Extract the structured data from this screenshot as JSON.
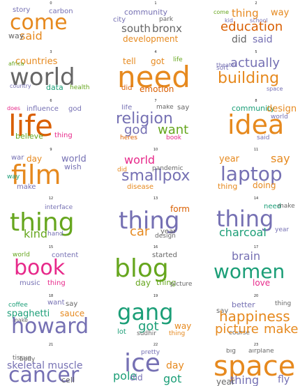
{
  "colors": {
    "orange": "#e6891e",
    "purple": "#7570b3",
    "green": "#66a61e",
    "teal": "#1b9e77",
    "pink": "#e7298a",
    "gold": "#b8860b",
    "grey": "#666666",
    "dark_orange": "#d95f02"
  },
  "panels": [
    {
      "index": "0",
      "words": [
        [
          "come",
          "#e6891e"
        ],
        [
          "said",
          "#e6891e"
        ],
        [
          "story",
          "#7570b3"
        ],
        [
          "carbon",
          "#7570b3"
        ],
        [
          "way",
          "#666666"
        ]
      ]
    },
    {
      "index": "1",
      "words": [
        [
          "community",
          "#7570b3"
        ],
        [
          "city",
          "#7570b3"
        ],
        [
          "park",
          "#666666"
        ],
        [
          "south",
          "#666666"
        ],
        [
          "bronx",
          "#666666"
        ],
        [
          "development",
          "#e6891e"
        ]
      ]
    },
    {
      "index": "2",
      "words": [
        [
          "thing",
          "#e6891e"
        ],
        [
          "way",
          "#e6891e"
        ],
        [
          "kid",
          "#7570b3"
        ],
        [
          "school",
          "#7570b3"
        ],
        [
          "education",
          "#d95f02"
        ],
        [
          "did",
          "#666666"
        ],
        [
          "said",
          "#7570b3"
        ],
        [
          "come",
          "#66a61e"
        ]
      ]
    },
    {
      "index": "3",
      "words": [
        [
          "countries",
          "#e6891e"
        ],
        [
          "world",
          "#666666"
        ],
        [
          "africa",
          "#66a61e"
        ],
        [
          "country",
          "#7570b3"
        ],
        [
          "data",
          "#1b9e77"
        ],
        [
          "health",
          "#66a61e"
        ]
      ]
    },
    {
      "index": "4",
      "words": [
        [
          "tell",
          "#e6891e"
        ],
        [
          "got",
          "#e6891e"
        ],
        [
          "life",
          "#66a61e"
        ],
        [
          "need",
          "#e6891e"
        ],
        [
          "did",
          "#d95f02"
        ],
        [
          "emotion",
          "#d95f02"
        ]
      ]
    },
    {
      "index": "5",
      "words": [
        [
          "actually",
          "#7570b3"
        ],
        [
          "building",
          "#e6891e"
        ],
        [
          "theater",
          "#7570b3"
        ],
        [
          "sort",
          "#7570b3"
        ],
        [
          "space",
          "#7570b3"
        ]
      ]
    },
    {
      "index": "6",
      "words": [
        [
          "life",
          "#d95f02"
        ],
        [
          "influence",
          "#7570b3"
        ],
        [
          "god",
          "#7570b3"
        ],
        [
          "believe",
          "#66a61e"
        ],
        [
          "thing",
          "#e7298a"
        ],
        [
          "does",
          "#e7298a"
        ]
      ]
    },
    {
      "index": "7",
      "words": [
        [
          "life",
          "#7570b3"
        ],
        [
          "make",
          "#666666"
        ],
        [
          "say",
          "#666666"
        ],
        [
          "religion",
          "#7570b3"
        ],
        [
          "god",
          "#7570b3"
        ],
        [
          "want",
          "#66a61e"
        ],
        [
          "heres",
          "#d95f02"
        ],
        [
          "book",
          "#e7298a"
        ]
      ]
    },
    {
      "index": "8",
      "words": [
        [
          "community",
          "#1b9e77"
        ],
        [
          "design",
          "#e6891e"
        ],
        [
          "idea",
          "#e6891e"
        ],
        [
          "world",
          "#7570b3"
        ],
        [
          "said",
          "#7570b3"
        ]
      ]
    },
    {
      "index": "9",
      "words": [
        [
          "war",
          "#7570b3"
        ],
        [
          "day",
          "#e6891e"
        ],
        [
          "world",
          "#7570b3"
        ],
        [
          "wish",
          "#7570b3"
        ],
        [
          "film",
          "#e6891e"
        ],
        [
          "make",
          "#7570b3"
        ],
        [
          "way",
          "#1b9e77"
        ]
      ]
    },
    {
      "index": "10",
      "words": [
        [
          "world",
          "#e7298a"
        ],
        [
          "did",
          "#e6891e"
        ],
        [
          "pandemic",
          "#666666"
        ],
        [
          "smallpox",
          "#7570b3"
        ],
        [
          "disease",
          "#e6891e"
        ]
      ]
    },
    {
      "index": "11",
      "words": [
        [
          "year",
          "#e6891e"
        ],
        [
          "say",
          "#e6891e"
        ],
        [
          "laptop",
          "#7570b3"
        ],
        [
          "thing",
          "#e6891e"
        ],
        [
          "doing",
          "#e6891e"
        ]
      ]
    },
    {
      "index": "12",
      "words": [
        [
          "thing",
          "#66a61e"
        ],
        [
          "interface",
          "#7570b3"
        ],
        [
          "hand",
          "#7570b3"
        ],
        [
          "kind",
          "#66a61e"
        ]
      ]
    },
    {
      "index": "13",
      "words": [
        [
          "form",
          "#d95f02"
        ],
        [
          "thing",
          "#7570b3"
        ],
        [
          "car",
          "#e6891e"
        ],
        [
          "year",
          "#666666"
        ],
        [
          "design",
          "#666666"
        ]
      ]
    },
    {
      "index": "14",
      "words": [
        [
          "need",
          "#1b9e77"
        ],
        [
          "make",
          "#666666"
        ],
        [
          "thing",
          "#7570b3"
        ],
        [
          "charcoal",
          "#1b9e77"
        ],
        [
          "year",
          "#7570b3"
        ]
      ]
    },
    {
      "index": "15",
      "words": [
        [
          "book",
          "#e7298a"
        ],
        [
          "world",
          "#66a61e"
        ],
        [
          "music",
          "#7570b3"
        ],
        [
          "thing",
          "#e7298a"
        ],
        [
          "content",
          "#7570b3"
        ]
      ]
    },
    {
      "index": "16",
      "words": [
        [
          "started",
          "#666666"
        ],
        [
          "blog",
          "#66a61e"
        ],
        [
          "day",
          "#66a61e"
        ],
        [
          "thing",
          "#66a61e"
        ],
        [
          "picture",
          "#666666"
        ]
      ]
    },
    {
      "index": "17",
      "words": [
        [
          "brain",
          "#7570b3"
        ],
        [
          "women",
          "#1b9e77"
        ],
        [
          "love",
          "#e7298a"
        ]
      ]
    },
    {
      "index": "18",
      "words": [
        [
          "want",
          "#7570b3"
        ],
        [
          "say",
          "#666666"
        ],
        [
          "coffee",
          "#1b9e77"
        ],
        [
          "spaghetti",
          "#1b9e77"
        ],
        [
          "sauce",
          "#e6891e"
        ],
        [
          "make",
          "#666666"
        ],
        [
          "howard",
          "#7570b3"
        ]
      ]
    },
    {
      "index": "19",
      "words": [
        [
          "gang",
          "#1b9e77"
        ],
        [
          "got",
          "#1b9e77"
        ],
        [
          "way",
          "#e6891e"
        ],
        [
          "thing",
          "#e6891e"
        ],
        [
          "lot",
          "#1b9e77"
        ],
        [
          "sudhir",
          "#666666"
        ]
      ]
    },
    {
      "index": "20",
      "words": [
        [
          "better",
          "#7570b3"
        ],
        [
          "thing",
          "#666666"
        ],
        [
          "say",
          "#666666"
        ],
        [
          "happiness",
          "#e6891e"
        ],
        [
          "course",
          "#666666"
        ],
        [
          "picture",
          "#e6891e"
        ],
        [
          "make",
          "#e6891e"
        ]
      ]
    },
    {
      "index": "21",
      "words": [
        [
          "tissue",
          "#666666"
        ],
        [
          "skeletal muscle",
          "#7570b3"
        ],
        [
          "cancer",
          "#7570b3"
        ],
        [
          "body",
          "#666666"
        ],
        [
          "cell",
          "#666666"
        ]
      ]
    },
    {
      "index": "22",
      "words": [
        [
          "pretty",
          "#7570b3"
        ],
        [
          "ice",
          "#7570b3"
        ],
        [
          "day",
          "#e6891e"
        ],
        [
          "pole",
          "#1b9e77"
        ],
        [
          "got",
          "#1b9e77"
        ],
        [
          "did",
          "#7570b3"
        ]
      ]
    },
    {
      "index": "23",
      "words": [
        [
          "big",
          "#666666"
        ],
        [
          "airplane",
          "#666666"
        ],
        [
          "space",
          "#e6891e"
        ],
        [
          "thing",
          "#7570b3"
        ],
        [
          "year",
          "#666666"
        ],
        [
          "fly",
          "#7570b3"
        ]
      ]
    }
  ]
}
